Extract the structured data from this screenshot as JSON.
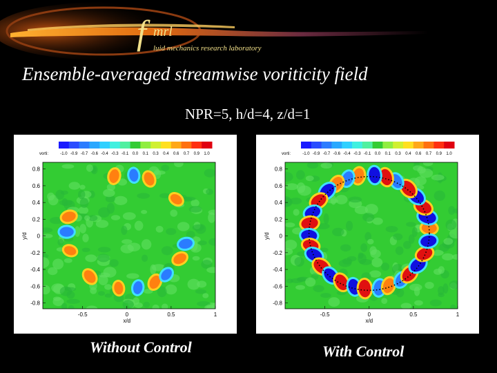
{
  "header": {
    "logo_f": "f",
    "logo_rest": "mrl",
    "logo_subtitle": "luid mechanics research laboratory",
    "title": "Ensemble-averaged streamwise voriticity field",
    "parameters": "NPR=5, h/d=4, z/d=1"
  },
  "colors": {
    "background": "#000000",
    "logo": "#f2e08a",
    "swoosh": "#e07a10",
    "field": "#33cc33"
  },
  "plots": [
    {
      "caption": "Without Control",
      "colorbar_label": "vorti:",
      "colorbar_ticks": [
        "-1.0",
        "-0.9",
        "-0.7",
        "-0.6",
        "-0.4",
        "-0.3",
        "-0.1",
        "0.0",
        "0.1",
        "0.3",
        "0.4",
        "0.6",
        "0.7",
        "0.9",
        "1.0"
      ],
      "x_label": "x/d",
      "y_label": "y/d",
      "x_ticks": [
        "-0.5",
        "0",
        "0.5",
        "1"
      ],
      "y_ticks": [
        "0.8",
        "0.6",
        "0.4",
        "0.2",
        "0",
        "-0.2",
        "-0.4",
        "-0.6",
        "-0.8"
      ],
      "has_dotted_ring": false
    },
    {
      "caption": "With Control",
      "colorbar_label": "vorti:",
      "colorbar_ticks": [
        "-1.0",
        "-0.9",
        "-0.7",
        "-0.6",
        "-0.4",
        "-0.3",
        "-0.1",
        "0.0",
        "0.1",
        "0.3",
        "0.4",
        "0.6",
        "0.7",
        "0.9",
        "1.0"
      ],
      "x_label": "x/d",
      "y_label": "y/d",
      "x_ticks": [
        "-0.5",
        "0",
        "0.5",
        "1"
      ],
      "y_ticks": [
        "0.8",
        "0.6",
        "0.4",
        "0.2",
        "0",
        "-0.2",
        "-0.4",
        "-0.6",
        "-0.8"
      ],
      "has_dotted_ring": true
    }
  ]
}
